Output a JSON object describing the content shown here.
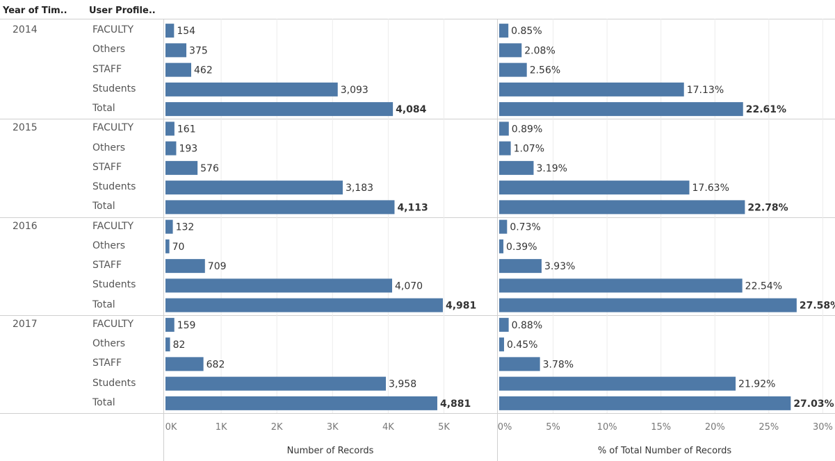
{
  "header": {
    "col_year": "Year of Tim..",
    "col_profile": "User Profile.."
  },
  "chart_data": {
    "type": "bar",
    "orientation": "horizontal",
    "row_groups": [
      "2014",
      "2015",
      "2016",
      "2017"
    ],
    "categories": [
      "FACULTY",
      "Others",
      "STAFF",
      "Students",
      "Total"
    ],
    "bar_color": "#4e79a7",
    "grid": true,
    "panels": [
      {
        "xlabel": "Number of Records",
        "xlim": [
          0,
          6000
        ],
        "ticks": [
          0,
          1000,
          2000,
          3000,
          4000,
          5000
        ],
        "tick_labels": [
          "0K",
          "1K",
          "2K",
          "3K",
          "4K",
          "5K"
        ],
        "values": [
          [
            154,
            375,
            462,
            3093,
            4084
          ],
          [
            161,
            193,
            576,
            3183,
            4113
          ],
          [
            132,
            70,
            709,
            4070,
            4981
          ],
          [
            159,
            82,
            682,
            3958,
            4881
          ]
        ],
        "value_labels": [
          [
            "154",
            "375",
            "462",
            "3,093",
            "4,084"
          ],
          [
            "161",
            "193",
            "576",
            "3,183",
            "4,113"
          ],
          [
            "132",
            "70",
            "709",
            "4,070",
            "4,981"
          ],
          [
            "159",
            "82",
            "682",
            "3,958",
            "4,881"
          ]
        ]
      },
      {
        "xlabel": "% of Total Number of Records",
        "xlim": [
          0,
          32.5
        ],
        "ticks": [
          0,
          5,
          10,
          15,
          20,
          25,
          30
        ],
        "tick_labels": [
          "0%",
          "5%",
          "10%",
          "15%",
          "20%",
          "25%",
          "30%"
        ],
        "values": [
          [
            0.85,
            2.08,
            2.56,
            17.13,
            22.61
          ],
          [
            0.89,
            1.07,
            3.19,
            17.63,
            22.78
          ],
          [
            0.73,
            0.39,
            3.93,
            22.54,
            27.58
          ],
          [
            0.88,
            0.45,
            3.78,
            21.92,
            27.03
          ]
        ],
        "value_labels": [
          [
            "0.85%",
            "2.08%",
            "2.56%",
            "17.13%",
            "22.61%"
          ],
          [
            "0.89%",
            "1.07%",
            "3.19%",
            "17.63%",
            "22.78%"
          ],
          [
            "0.73%",
            "0.39%",
            "3.93%",
            "22.54%",
            "27.58%"
          ],
          [
            "0.88%",
            "0.45%",
            "3.78%",
            "21.92%",
            "27.03%"
          ]
        ]
      }
    ]
  }
}
